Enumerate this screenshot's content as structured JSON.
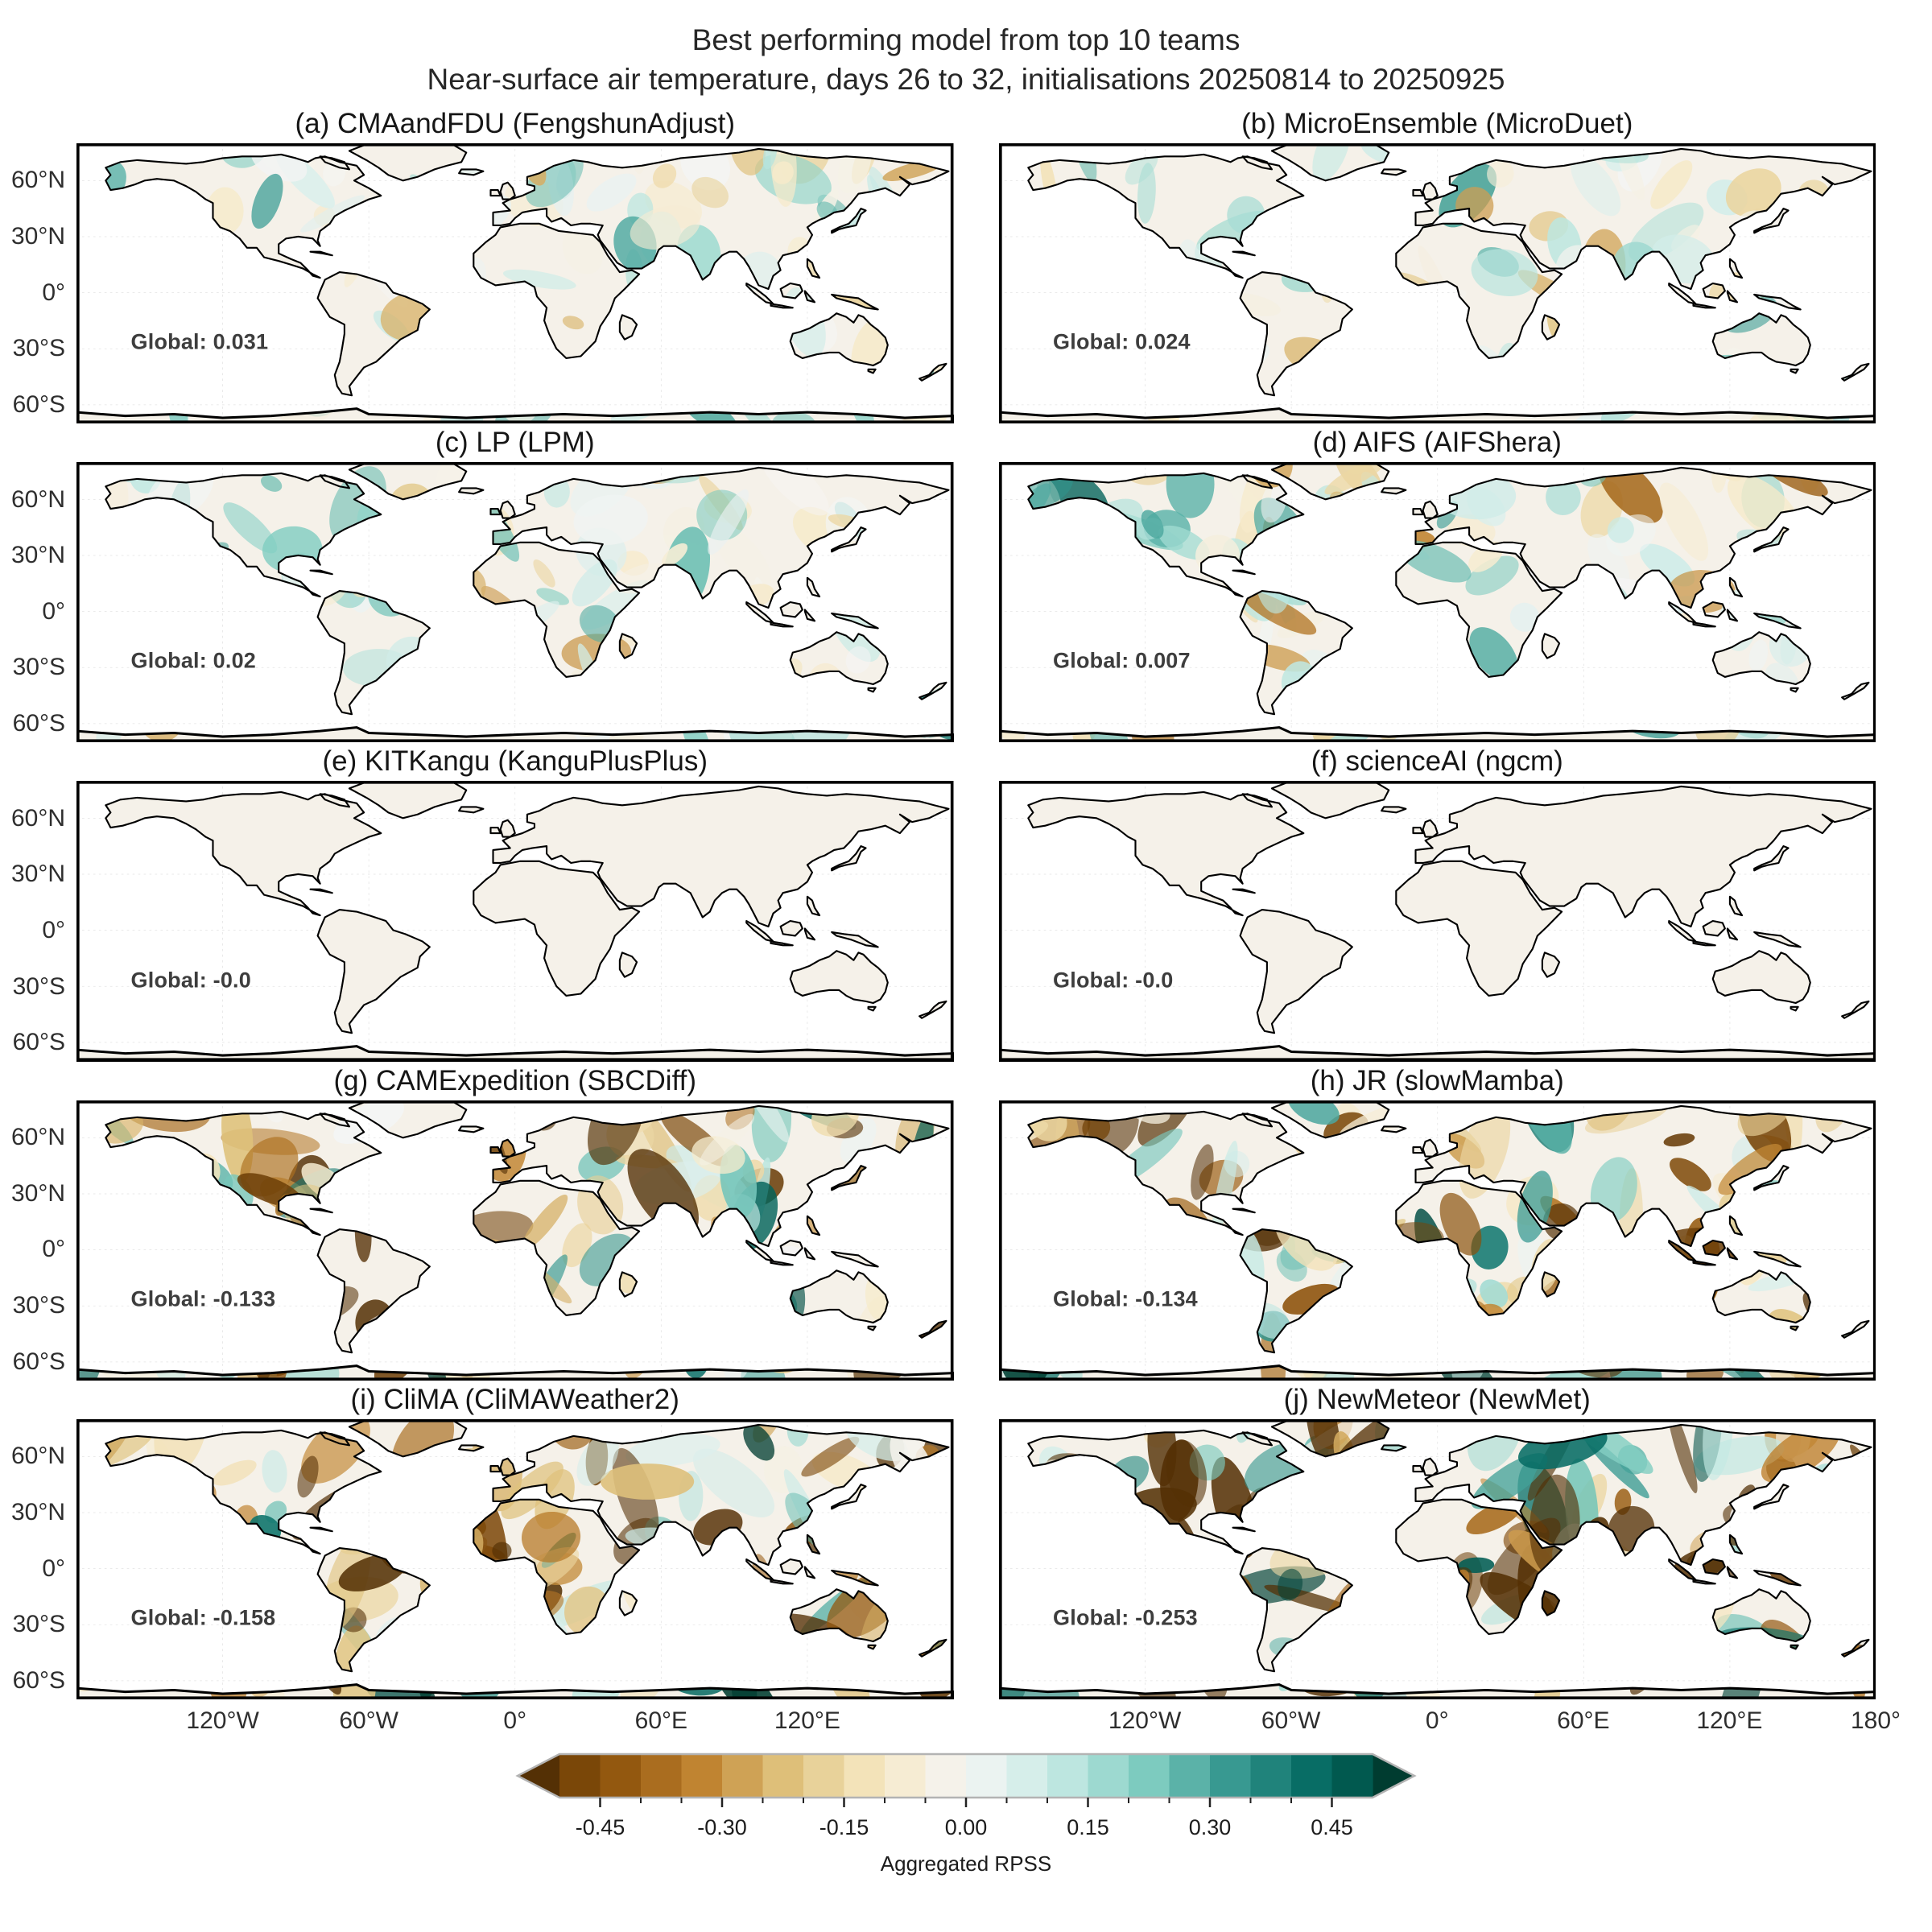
{
  "figure": {
    "title_line1": "Best performing model from top 10 teams",
    "title_line2": "Near-surface air temperature, days 26 to 32, initialisations 20250814 to 20250925"
  },
  "axes": {
    "lat_tick_labels": [
      "60°N",
      "30°N",
      "0°",
      "30°S",
      "60°S"
    ],
    "lat_tick_values": [
      60,
      30,
      0,
      -30,
      -60
    ],
    "lon_tick_labels": [
      "120°W",
      "60°W",
      "0°",
      "60°E",
      "120°E"
    ],
    "lon_tick_values": [
      -120,
      -60,
      0,
      60,
      120
    ],
    "lon_tick_extra_label": "180°",
    "lon_tick_extra_value": 180
  },
  "panels": [
    {
      "id": "a",
      "title": "(a) CMAandFDU (FengshunAdjust)",
      "team": "CMAandFDU",
      "model": "FengshunAdjust",
      "global_label": "Global: 0.031"
    },
    {
      "id": "b",
      "title": "(b) MicroEnsemble (MicroDuet)",
      "team": "MicroEnsemble",
      "model": "MicroDuet",
      "global_label": "Global: 0.024"
    },
    {
      "id": "c",
      "title": "(c) LP (LPM)",
      "team": "LP",
      "model": "LPM",
      "global_label": "Global: 0.02"
    },
    {
      "id": "d",
      "title": "(d) AIFS (AIFShera)",
      "team": "AIFS",
      "model": "AIFShera",
      "global_label": "Global: 0.007"
    },
    {
      "id": "e",
      "title": "(e) KITKangu (KanguPlusPlus)",
      "team": "KITKangu",
      "model": "KanguPlusPlus",
      "global_label": "Global: -0.0"
    },
    {
      "id": "f",
      "title": "(f) scienceAI (ngcm)",
      "team": "scienceAI",
      "model": "ngcm",
      "global_label": "Global: -0.0"
    },
    {
      "id": "g",
      "title": "(g) CAMExpedition (SBCDiff)",
      "team": "CAMExpedition",
      "model": "SBCDiff",
      "global_label": "Global: -0.133"
    },
    {
      "id": "h",
      "title": "(h) JR (slowMamba)",
      "team": "JR",
      "model": "slowMamba",
      "global_label": "Global: -0.134"
    },
    {
      "id": "i",
      "title": "(i) CliMA (CliMAWeather2)",
      "team": "CliMA",
      "model": "CliMAWeather2",
      "global_label": "Global: -0.158"
    },
    {
      "id": "j",
      "title": "(j) NewMeteor (NewMet)",
      "team": "NewMeteor",
      "model": "NewMet",
      "global_label": "Global: -0.253"
    }
  ],
  "colorbar": {
    "label": "Aggregated RPSS",
    "tick_labels": [
      "-0.45",
      "-0.30",
      "-0.15",
      "0.00",
      "0.15",
      "0.30",
      "0.45"
    ],
    "tick_values": [
      -0.45,
      -0.3,
      -0.15,
      0.0,
      0.15,
      0.3,
      0.45
    ],
    "minor_step": 0.05,
    "range": [
      -0.5,
      0.5
    ],
    "extend": "both",
    "anchors": [
      "#543005",
      "#8c510a",
      "#bf812d",
      "#dfc27d",
      "#f6e8c3",
      "#f5f5f5",
      "#c7eae5",
      "#80cdc1",
      "#35978f",
      "#01665e",
      "#003c30"
    ]
  },
  "map_colors": {
    "ocean": "#ffffff",
    "land_base": "#f5f1e9",
    "coastline": "#000000",
    "grid": "#e3e3e3"
  },
  "chart_data": {
    "type": "heatmap",
    "subtype": "global-choropleth-grid",
    "title": "Best performing model from top 10 teams",
    "subtitle": "Near-surface air temperature, days 26 to 32, initialisations 20250814 to 20250925",
    "rows": 5,
    "cols": 2,
    "colorbar_label": "Aggregated RPSS",
    "colorbar_range": [
      -0.5,
      0.5
    ],
    "colorbar_tick_values": [
      -0.45,
      -0.3,
      -0.15,
      0.0,
      0.15,
      0.3,
      0.45
    ],
    "projection": "equirectangular",
    "lat_extent": [
      -70,
      80
    ],
    "lon_extent": [
      -180,
      180
    ],
    "panels": [
      {
        "label": "(a)",
        "team": "CMAandFDU",
        "model": "FengshunAdjust",
        "global_rpss": 0.031,
        "pattern": {
          "bias": 0.035,
          "amplitude": 0.26
        }
      },
      {
        "label": "(b)",
        "team": "MicroEnsemble",
        "model": "MicroDuet",
        "global_rpss": 0.024,
        "pattern": {
          "bias": 0.03,
          "amplitude": 0.3
        }
      },
      {
        "label": "(c)",
        "team": "LP",
        "model": "LPM",
        "global_rpss": 0.02,
        "pattern": {
          "bias": 0.025,
          "amplitude": 0.32
        }
      },
      {
        "label": "(d)",
        "team": "AIFS",
        "model": "AIFShera",
        "global_rpss": 0.007,
        "pattern": {
          "bias": 0.0,
          "amplitude": 0.36
        }
      },
      {
        "label": "(e)",
        "team": "KITKangu",
        "model": "KanguPlusPlus",
        "global_rpss": -0.0,
        "pattern": {
          "bias": 0.0,
          "amplitude": 0.0
        }
      },
      {
        "label": "(f)",
        "team": "scienceAI",
        "model": "ngcm",
        "global_rpss": -0.0,
        "pattern": {
          "bias": 0.0,
          "amplitude": 0.0
        }
      },
      {
        "label": "(g)",
        "team": "CAMExpedition",
        "model": "SBCDiff",
        "global_rpss": -0.133,
        "pattern": {
          "bias": -0.16,
          "amplitude": 0.62
        }
      },
      {
        "label": "(h)",
        "team": "JR",
        "model": "slowMamba",
        "global_rpss": -0.134,
        "pattern": {
          "bias": -0.16,
          "amplitude": 0.62
        }
      },
      {
        "label": "(i)",
        "team": "CliMA",
        "model": "CliMAWeather2",
        "global_rpss": -0.158,
        "pattern": {
          "bias": -0.22,
          "amplitude": 0.72
        }
      },
      {
        "label": "(j)",
        "team": "NewMeteor",
        "model": "NewMet",
        "global_rpss": -0.253,
        "pattern": {
          "bias": -0.28,
          "amplitude": 0.78
        }
      }
    ]
  }
}
